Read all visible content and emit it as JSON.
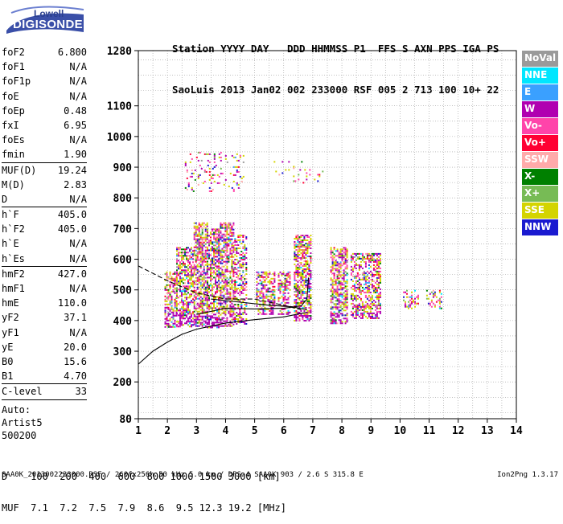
{
  "logo": {
    "top": "Lowell",
    "bottom": "DIGISONDE"
  },
  "header": {
    "line1": "Station YYYY DAY   DDD HHMMSS P1  FFS S AXN PPS IGA PS",
    "line2": "SaoLuis 2013 Jan02 002 233000 RSF 005 2 713 100 10+ 22"
  },
  "params": {
    "group1": [
      {
        "label": "foF2",
        "value": "6.800"
      },
      {
        "label": "foF1",
        "value": "N/A"
      },
      {
        "label": "foF1p",
        "value": "N/A"
      },
      {
        "label": "foE",
        "value": "N/A"
      },
      {
        "label": "foEp",
        "value": "0.48"
      },
      {
        "label": "fxI",
        "value": "6.95"
      },
      {
        "label": "foEs",
        "value": "N/A"
      },
      {
        "label": "fmin",
        "value": "1.90"
      }
    ],
    "group2": [
      {
        "label": "MUF(D)",
        "value": "19.24"
      },
      {
        "label": "M(D)",
        "value": "2.83"
      },
      {
        "label": "D",
        "value": "N/A"
      }
    ],
    "group3": [
      {
        "label": "h`F",
        "value": "405.0"
      },
      {
        "label": "h`F2",
        "value": "405.0"
      },
      {
        "label": "h`E",
        "value": "N/A"
      },
      {
        "label": "h`Es",
        "value": "N/A"
      }
    ],
    "group4": [
      {
        "label": "hmF2",
        "value": "427.0"
      },
      {
        "label": "hmF1",
        "value": "N/A"
      },
      {
        "label": "hmE",
        "value": "110.0"
      },
      {
        "label": "yF2",
        "value": "37.1"
      },
      {
        "label": "yF1",
        "value": "N/A"
      },
      {
        "label": "yE",
        "value": "20.0"
      },
      {
        "label": "B0",
        "value": "15.6"
      },
      {
        "label": "B1",
        "value": "4.70"
      }
    ],
    "group5": [
      {
        "label": "C-level",
        "value": "33"
      }
    ],
    "auto": [
      "Auto:",
      "Artist5",
      "500200"
    ]
  },
  "legend": [
    {
      "label": "NoVal",
      "color": "#9a9a9a"
    },
    {
      "label": "NNE",
      "color": "#00e6ff"
    },
    {
      "label": "E",
      "color": "#3aa0ff"
    },
    {
      "label": "W",
      "color": "#b000b0"
    },
    {
      "label": "Vo-",
      "color": "#ff44aa"
    },
    {
      "label": "Vo+",
      "color": "#ff0033"
    },
    {
      "label": "SSW",
      "color": "#ffaaaa"
    },
    {
      "label": "X-",
      "color": "#008000"
    },
    {
      "label": "X+",
      "color": "#77bb55"
    },
    {
      "label": "SSE",
      "color": "#d4d400"
    },
    {
      "label": "NNW",
      "color": "#1a1ad0"
    }
  ],
  "muf_table": {
    "line1": "D    100  200  400  600  800 1000 1500 3000 [km]",
    "line2": "MUF  7.1  7.2  7.5  7.9  8.6  9.5 12.3 19.2 [MHz]"
  },
  "footer": {
    "left": "SAA0K_2013002233000.RSF / 260fx256h 50 kHz 5.0 km / DPS-4 SAA0K 903 / 2.6 S 315.8 E",
    "right": "Ion2Png 1.3.17"
  },
  "chart_data": {
    "type": "scatter",
    "title": "",
    "xlabel": "",
    "ylabel": "",
    "xlim": [
      1,
      14
    ],
    "ylim": [
      80,
      1280
    ],
    "x_ticks": [
      1,
      2,
      3,
      4,
      5,
      6,
      7,
      8,
      9,
      10,
      11,
      12,
      13,
      14
    ],
    "y_ticks": [
      80,
      200,
      300,
      400,
      500,
      600,
      700,
      800,
      900,
      1000,
      1100,
      1280
    ],
    "grid": true,
    "scatter_regions": [
      {
        "x_range": [
          1.9,
          2.3
        ],
        "y_range": [
          380,
          560
        ],
        "density": 0.55
      },
      {
        "x_range": [
          2.3,
          2.9
        ],
        "y_range": [
          380,
          640
        ],
        "density": 0.6
      },
      {
        "x_range": [
          2.9,
          3.35
        ],
        "y_range": [
          380,
          720
        ],
        "density": 0.65
      },
      {
        "x_range": [
          3.35,
          3.75
        ],
        "y_range": [
          380,
          700
        ],
        "density": 0.6
      },
      {
        "x_range": [
          3.75,
          4.3
        ],
        "y_range": [
          380,
          720
        ],
        "density": 0.6
      },
      {
        "x_range": [
          4.3,
          4.7
        ],
        "y_range": [
          390,
          680
        ],
        "density": 0.5
      },
      {
        "x_range": [
          2.6,
          4.6
        ],
        "y_range": [
          820,
          950
        ],
        "density": 0.12
      },
      {
        "x_range": [
          5.05,
          5.7
        ],
        "y_range": [
          420,
          560
        ],
        "density": 0.55
      },
      {
        "x_range": [
          5.8,
          6.2
        ],
        "y_range": [
          420,
          560
        ],
        "density": 0.5
      },
      {
        "x_range": [
          6.35,
          6.95
        ],
        "y_range": [
          400,
          680
        ],
        "density": 0.65
      },
      {
        "x_range": [
          7.6,
          8.2
        ],
        "y_range": [
          390,
          640
        ],
        "density": 0.6
      },
      {
        "x_range": [
          8.3,
          9.3
        ],
        "y_range": [
          410,
          620
        ],
        "density": 0.55
      },
      {
        "x_range": [
          10.1,
          10.6
        ],
        "y_range": [
          440,
          500
        ],
        "density": 0.35
      },
      {
        "x_range": [
          10.9,
          11.4
        ],
        "y_range": [
          440,
          500
        ],
        "density": 0.3
      },
      {
        "x_range": [
          5.6,
          7.4
        ],
        "y_range": [
          850,
          920
        ],
        "density": 0.08
      }
    ],
    "lines": [
      {
        "name": "virtual-height-trace",
        "style": "dashed",
        "points": [
          [
            1.0,
            578
          ],
          [
            2.0,
            530
          ],
          [
            3.0,
            490
          ],
          [
            4.0,
            470
          ],
          [
            5.0,
            470
          ],
          [
            6.0,
            450
          ],
          [
            6.6,
            435
          ]
        ]
      },
      {
        "name": "profile-lower",
        "style": "solid",
        "points": [
          [
            1.0,
            258
          ],
          [
            1.5,
            300
          ],
          [
            2.0,
            330
          ],
          [
            2.5,
            355
          ],
          [
            3.0,
            372
          ],
          [
            4.0,
            392
          ],
          [
            5.0,
            403
          ],
          [
            6.0,
            412
          ],
          [
            6.8,
            427
          ]
        ]
      },
      {
        "name": "profile-upper",
        "style": "solid",
        "points": [
          [
            3.0,
            420
          ],
          [
            4.0,
            440
          ],
          [
            5.0,
            438
          ],
          [
            6.0,
            440
          ],
          [
            6.6,
            448
          ],
          [
            6.8,
            470
          ],
          [
            6.85,
            540
          ]
        ]
      },
      {
        "name": "hF2-trace",
        "style": "solid",
        "points": [
          [
            3.5,
            470
          ],
          [
            4.5,
            460
          ],
          [
            5.5,
            450
          ],
          [
            6.3,
            445
          ],
          [
            6.8,
            435
          ]
        ]
      }
    ]
  }
}
